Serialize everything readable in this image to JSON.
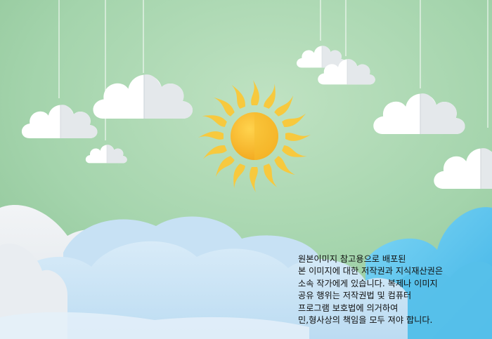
{
  "image": {
    "alt": "Paper-cut style illustration: sun and hanging paper clouds over a green sky with layered blue clouds below",
    "palette": {
      "sky_center": "#b6dcb8",
      "sky_edge": "#8fc89a",
      "sun_core": "#f6b52a",
      "sun_rays": "#f7c93e",
      "cloud_white": "#ffffff",
      "cloud_shade": "#e3e7ea",
      "bottom_cloud_blue": "#5ec4ec",
      "bottom_cloud_light": "#cfe6f6",
      "bottom_cloud_grey": "#e7ecf0"
    },
    "icons": [
      "sun-icon",
      "hanging-cloud-icon"
    ]
  },
  "notice": {
    "lines": [
      "원본이미지 참고용으로 배포된",
      "본 이미지에 대한 저작권과 지식재산권은",
      "소속 작가에게 있습니다. 복제나 이미지",
      "공유 행위는 저작권법 및 컴퓨터",
      "프로그램 보호법에 의거하여",
      "민,형사상의 책임을 모두 져야 합니다."
    ]
  }
}
